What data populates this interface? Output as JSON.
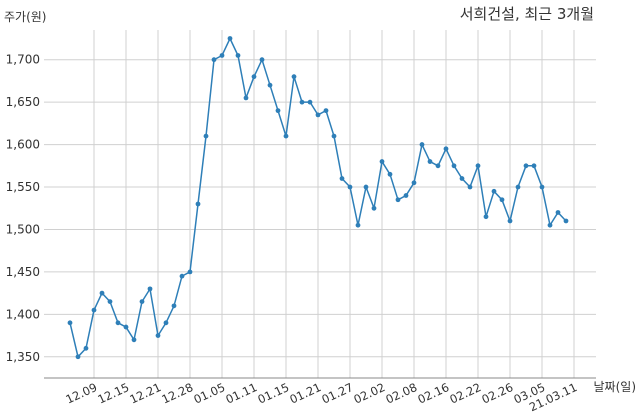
{
  "chart_data": {
    "type": "line",
    "title": "서희건설, 최근 3개월",
    "ylabel": "주가(원)",
    "xlabel": "날짜(일)",
    "ylim": [
      1325,
      1735
    ],
    "yticks": [
      1350,
      1400,
      1450,
      1500,
      1550,
      1600,
      1650,
      1700
    ],
    "ytick_labels": [
      "1,350",
      "1,400",
      "1,450",
      "1,500",
      "1,550",
      "1,600",
      "1,650",
      "1,700"
    ],
    "xtick_labels": [
      "12.09",
      "12.15",
      "12.21",
      "12.28",
      "01.05",
      "01.11",
      "01.15",
      "01.21",
      "01.27",
      "02.02",
      "02.08",
      "02.16",
      "02.22",
      "02.26",
      "03.05",
      "21.03.11"
    ],
    "xtick_index": [
      3,
      7,
      11,
      15,
      19,
      23,
      27,
      31,
      35,
      39,
      43,
      47,
      51,
      55,
      59,
      63
    ],
    "grid": true,
    "line_color": "#2e7fb8",
    "series": [
      {
        "values": [
          1390,
          1350,
          1360,
          1405,
          1425,
          1415,
          1390,
          1385,
          1370,
          1415,
          1430,
          1375,
          1390,
          1410,
          1445,
          1450,
          1530,
          1610,
          1700,
          1705,
          1725,
          1705,
          1655,
          1680,
          1700,
          1670,
          1640,
          1610,
          1680,
          1650,
          1650,
          1635,
          1640,
          1610,
          1560,
          1550,
          1505,
          1550,
          1525,
          1580,
          1565,
          1535,
          1540,
          1555,
          1600,
          1580,
          1575,
          1595,
          1575,
          1560,
          1550,
          1575,
          1515,
          1545,
          1535,
          1510,
          1550,
          1575,
          1575,
          1550,
          1505,
          1520,
          1510
        ]
      }
    ]
  }
}
